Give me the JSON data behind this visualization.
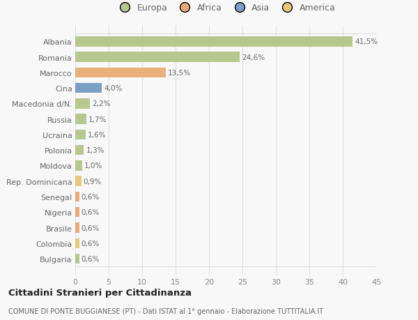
{
  "categories": [
    "Bulgaria",
    "Colombia",
    "Brasile",
    "Nigeria",
    "Senegal",
    "Rep. Dominicana",
    "Moldova",
    "Polonia",
    "Ucraina",
    "Russia",
    "Macedonia d/N.",
    "Cina",
    "Marocco",
    "Romania",
    "Albania"
  ],
  "values": [
    0.6,
    0.6,
    0.6,
    0.6,
    0.6,
    0.9,
    1.0,
    1.3,
    1.6,
    1.7,
    2.2,
    4.0,
    13.5,
    24.6,
    41.5
  ],
  "labels": [
    "0,6%",
    "0,6%",
    "0,6%",
    "0,6%",
    "0,6%",
    "0,9%",
    "1,0%",
    "1,3%",
    "1,6%",
    "1,7%",
    "2,2%",
    "4,0%",
    "13,5%",
    "24,6%",
    "41,5%"
  ],
  "colors": [
    "#b5c98e",
    "#e8c97a",
    "#e8a878",
    "#e8a878",
    "#e8a878",
    "#e8c97a",
    "#b5c98e",
    "#b5c98e",
    "#b5c98e",
    "#b5c98e",
    "#b5c98e",
    "#7b9ec7",
    "#e8b07a",
    "#b5c98e",
    "#b5c98e"
  ],
  "legend_labels": [
    "Europa",
    "Africa",
    "Asia",
    "America"
  ],
  "legend_colors": [
    "#b5c98e",
    "#e8a878",
    "#7b9ec7",
    "#e8c97a"
  ],
  "xlim": [
    0,
    45
  ],
  "xticks": [
    0,
    5,
    10,
    15,
    20,
    25,
    30,
    35,
    40,
    45
  ],
  "title": "Cittadini Stranieri per Cittadinanza",
  "subtitle": "COMUNE DI PONTE BUGGIANESE (PT) - Dati ISTAT al 1° gennaio - Elaborazione TUTTITALIA.IT",
  "bg_color": "#f8f8f8",
  "grid_color": "#e0e0e0",
  "bar_height": 0.65
}
